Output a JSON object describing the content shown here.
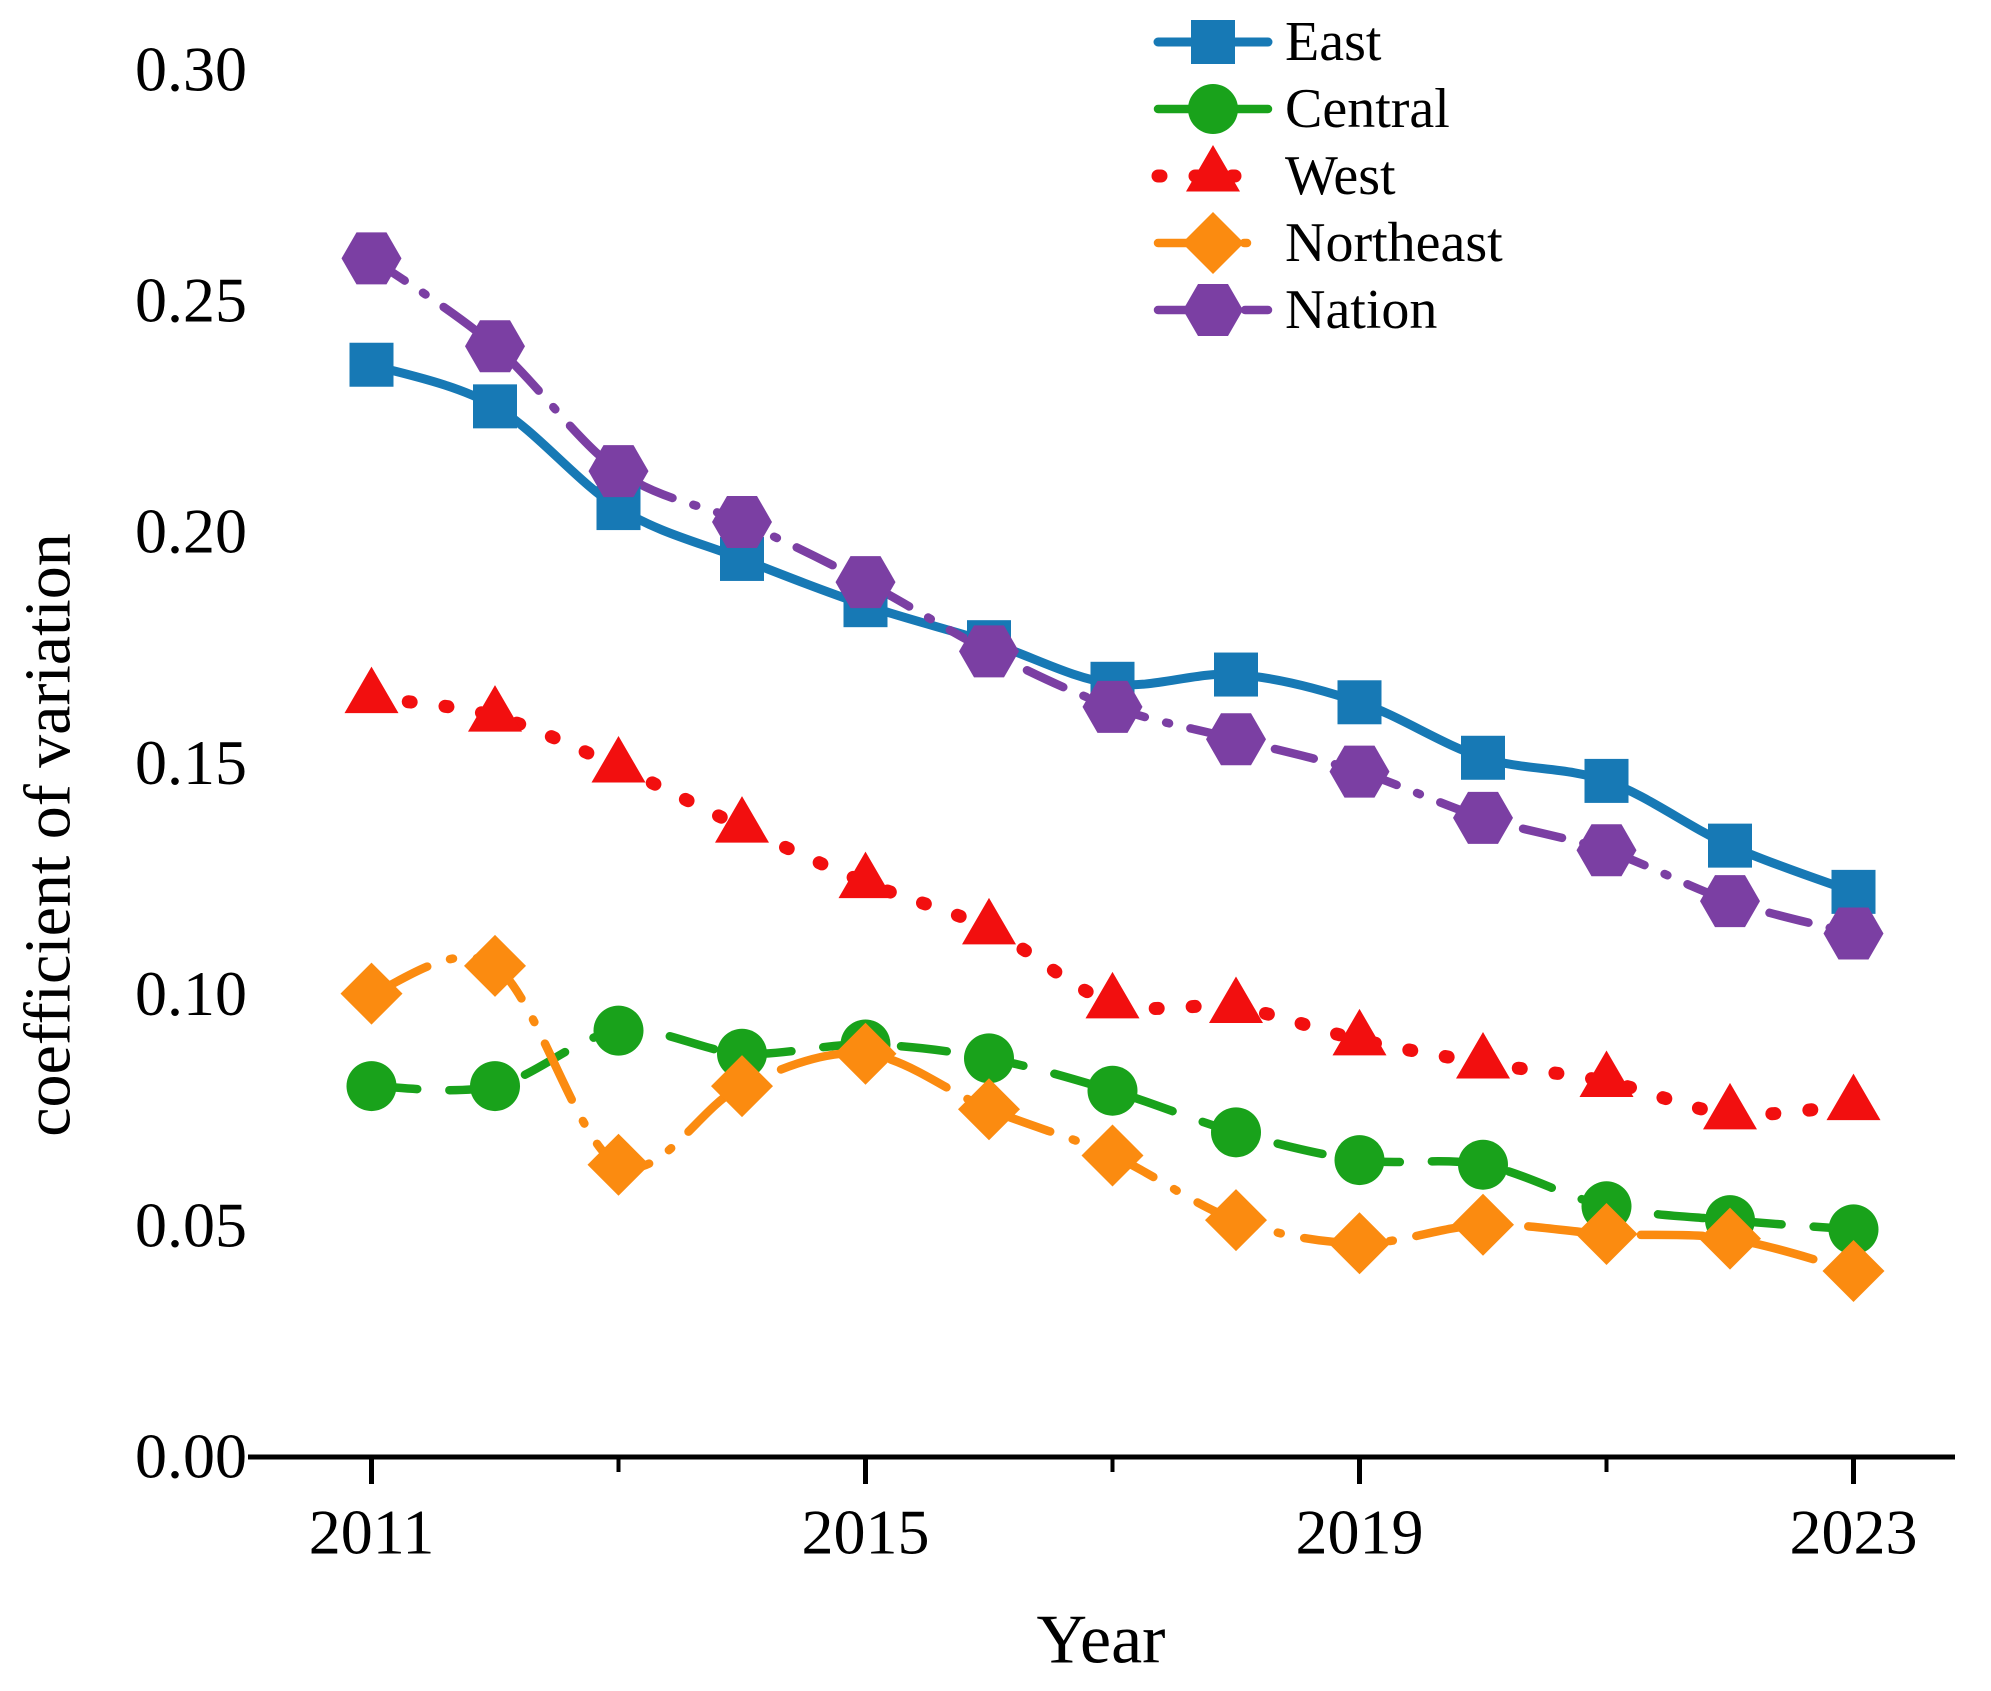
{
  "figure": {
    "background": "#ffffff",
    "axis_color": "#000000"
  },
  "chart_data": {
    "type": "line",
    "title": "",
    "xlabel": "Year",
    "ylabel": "coefficient of variation",
    "x": [
      2011,
      2012,
      2013,
      2014,
      2015,
      2016,
      2017,
      2018,
      2019,
      2020,
      2021,
      2022,
      2023
    ],
    "series": [
      {
        "name": "East",
        "color": "#1779b5",
        "marker": "square",
        "linestyle": "solid",
        "values": [
          0.236,
          0.227,
          0.205,
          0.194,
          0.184,
          0.176,
          0.167,
          0.169,
          0.163,
          0.151,
          0.146,
          0.132,
          0.122
        ]
      },
      {
        "name": "Central",
        "color": "#19a21b",
        "marker": "circle",
        "linestyle": "dashed",
        "values": [
          0.08,
          0.08,
          0.092,
          0.087,
          0.089,
          0.086,
          0.079,
          0.07,
          0.064,
          0.063,
          0.054,
          0.051,
          0.049
        ]
      },
      {
        "name": "West",
        "color": "#f20f0f",
        "marker": "triangle-up",
        "linestyle": "dotted",
        "values": [
          0.164,
          0.16,
          0.149,
          0.136,
          0.124,
          0.114,
          0.098,
          0.097,
          0.09,
          0.085,
          0.081,
          0.074,
          0.076
        ]
      },
      {
        "name": "Northeast",
        "color": "#fb8b10",
        "marker": "diamond",
        "linestyle": "dashdot",
        "values": [
          0.1,
          0.106,
          0.063,
          0.08,
          0.087,
          0.075,
          0.065,
          0.051,
          0.046,
          0.05,
          0.048,
          0.047,
          0.04
        ]
      },
      {
        "name": "Nation",
        "color": "#7b3fa3",
        "marker": "hexagon",
        "linestyle": "dashdotdot",
        "values": [
          0.259,
          0.24,
          0.213,
          0.202,
          0.189,
          0.174,
          0.162,
          0.155,
          0.148,
          0.138,
          0.131,
          0.12,
          0.113
        ]
      }
    ],
    "xlim": [
      2010,
      2023.82
    ],
    "ylim": [
      0,
      0.3147
    ],
    "x_major_ticks": [
      2011,
      2015,
      2019,
      2023
    ],
    "x_major_tick_labels": [
      "2011",
      "2015",
      "2019",
      "2023"
    ],
    "x_minor_ticks": [
      2013,
      2017,
      2021
    ],
    "y_ticks": [
      0.0,
      0.05,
      0.1,
      0.15,
      0.2,
      0.25,
      0.3
    ],
    "y_tick_labels": [
      "0.00",
      "0.05",
      "0.10",
      "0.15",
      "0.20",
      "0.25",
      "0.30"
    ],
    "grid": false,
    "legend_position": "top-right",
    "legend_labels": [
      "East",
      "Central",
      "West",
      "Northeast",
      "Nation"
    ]
  }
}
